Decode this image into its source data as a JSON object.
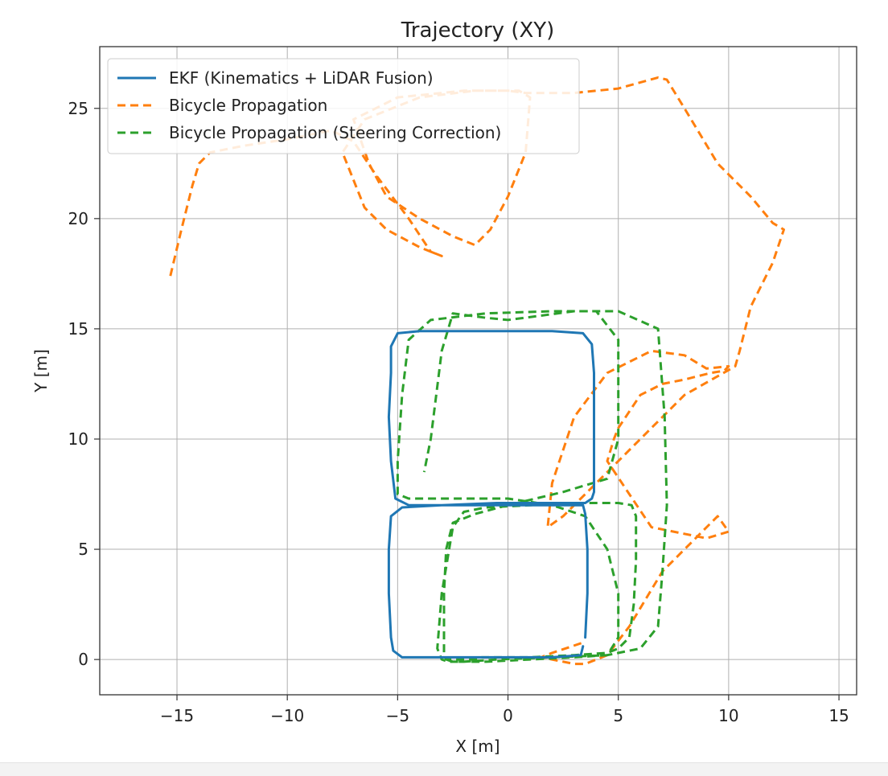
{
  "chart_data": {
    "type": "line",
    "title": "Trajectory (XY)",
    "xlabel": "X [m]",
    "ylabel": "Y [m]",
    "xlim": [
      -18.5,
      15.8
    ],
    "ylim": [
      -1.6,
      27.8
    ],
    "xticks": [
      -15,
      -10,
      -5,
      0,
      5,
      10,
      15
    ],
    "yticks": [
      0,
      5,
      10,
      15,
      20,
      25
    ],
    "xtick_labels": [
      "−15",
      "−10",
      "−5",
      "0",
      "5",
      "10",
      "15"
    ],
    "ytick_labels": [
      "0",
      "5",
      "10",
      "15",
      "20",
      "25"
    ],
    "grid": true,
    "legend_position": "top-left",
    "series": [
      {
        "name": "EKF (Kinematics + LiDAR Fusion)",
        "color": "#1f77b4",
        "style": "solid",
        "x": [
          3.5,
          3.6,
          3.6,
          3.5,
          3.4,
          2.5,
          0.0,
          -2.5,
          -4.5,
          -5.1,
          -5.3,
          -5.4,
          -5.3,
          -5.3,
          -5.0,
          -4.0,
          -2.0,
          0.0,
          2.0,
          3.4,
          3.8,
          3.9,
          3.9,
          3.9,
          3.9,
          3.8,
          3.5,
          2.0,
          -0.5,
          -3.0,
          -4.8,
          -5.3,
          -5.4,
          -5.4,
          -5.3,
          -5.2,
          -4.8,
          -4.0,
          -2.0,
          0.0,
          2.0,
          3.3,
          3.4
        ],
        "y": [
          1.0,
          3.0,
          5.0,
          6.6,
          7.0,
          7.0,
          7.0,
          7.0,
          7.0,
          7.3,
          9.0,
          11.0,
          13.0,
          14.2,
          14.8,
          14.9,
          14.9,
          14.9,
          14.9,
          14.8,
          14.3,
          13.0,
          11.0,
          9.0,
          7.6,
          7.3,
          7.1,
          7.1,
          7.1,
          7.0,
          6.9,
          6.5,
          5.0,
          3.0,
          1.0,
          0.4,
          0.1,
          0.1,
          0.1,
          0.1,
          0.1,
          0.2,
          0.6
        ]
      },
      {
        "name": "Bicycle Propagation",
        "color": "#ff7f0e",
        "style": "dashed",
        "x": [
          -15.3,
          -14.8,
          -14.3,
          -14.0,
          -13.5,
          -12.0,
          -10.0,
          -8.0,
          -7.0,
          -6.0,
          -4.5,
          -3.5,
          -3.0,
          -4.0,
          -5.5,
          -6.5,
          -7.5,
          -6.5,
          -4.0,
          -1.5,
          0.5,
          1.0,
          0.8,
          0.0,
          -0.8,
          -1.5,
          -2.5,
          -4.0,
          -5.5,
          -6.3,
          -7.0,
          -5.0,
          -2.0,
          0.0,
          0.8,
          3.0,
          5.0,
          6.8,
          7.2,
          8.0,
          9.5,
          11.0,
          12.0,
          12.5,
          12.0,
          11.0,
          10.5,
          10.3,
          8.0,
          6.0,
          4.0,
          2.5,
          1.8,
          2.0,
          3.0,
          4.5,
          6.5,
          8.0,
          9.0,
          10.0,
          9.8,
          9.2,
          8.0,
          7.0,
          6.0,
          5.0,
          4.8,
          4.5,
          5.5,
          6.5,
          9.0,
          10.0,
          9.5,
          7.0,
          6.4,
          5.5,
          4.5,
          3.5,
          3.0,
          2.0,
          1.5,
          2.0,
          3.5
        ],
        "y": [
          17.4,
          19.5,
          21.5,
          22.5,
          23.0,
          23.3,
          23.6,
          24.0,
          23.5,
          22.0,
          20.0,
          18.5,
          18.3,
          18.7,
          19.5,
          20.5,
          23.0,
          24.5,
          25.5,
          25.8,
          25.8,
          25.5,
          23.0,
          21.0,
          19.5,
          18.8,
          19.2,
          20.0,
          21.0,
          22.5,
          24.5,
          25.5,
          25.8,
          25.8,
          25.7,
          25.7,
          25.9,
          26.4,
          26.3,
          25.0,
          22.5,
          21.0,
          19.8,
          19.5,
          18.0,
          16.0,
          14.0,
          13.3,
          12.0,
          10.0,
          8.0,
          6.5,
          6.0,
          8.0,
          11.0,
          13.0,
          14.0,
          13.8,
          13.2,
          13.3,
          13.1,
          13.0,
          12.7,
          12.5,
          12.0,
          10.5,
          10.0,
          9.0,
          7.5,
          6.0,
          5.5,
          5.8,
          6.5,
          4.0,
          3.0,
          1.5,
          0.2,
          -0.2,
          -0.2,
          0.0,
          0.1,
          0.3,
          0.8
        ]
      },
      {
        "name": "Bicycle Propagation (Steering Correction)",
        "color": "#2ca02c",
        "style": "dashed",
        "x": [
          -2.8,
          -2.5,
          -2.0,
          -1.0,
          1.0,
          3.0,
          4.5,
          5.0,
          5.0,
          4.5,
          3.5,
          2.0,
          0.0,
          -2.5,
          -4.5,
          -5.0,
          -5.0,
          -4.8,
          -4.5,
          -3.5,
          -1.0,
          2.0,
          4.0,
          5.0,
          5.0,
          5.0,
          4.5,
          2.5,
          0.0,
          -1.5,
          -2.5,
          -2.8,
          -2.9,
          -2.9,
          -2.9,
          -2.9,
          -2.8,
          -2.0,
          -1.5,
          -1.3,
          -1.2,
          -0.8,
          1.0,
          3.0,
          4.5,
          5.0,
          5.5,
          5.7,
          5.8,
          5.8,
          5.6,
          5.0,
          3.5,
          1.0,
          -1.0,
          -2.0,
          -2.5,
          -3.0,
          -3.2,
          -3.0,
          -2.7,
          -2.0,
          -0.5,
          2.0,
          4.5,
          6.0,
          6.8,
          7.0,
          7.2,
          7.1,
          6.8,
          5.0,
          3.0,
          1.5,
          0.0,
          -1.0,
          -2.5,
          -3.0,
          -3.5,
          -3.8
        ],
        "y": [
          0.0,
          -0.1,
          -0.1,
          -0.1,
          0.0,
          0.1,
          0.2,
          1.0,
          3.0,
          5.0,
          6.5,
          7.0,
          7.3,
          7.3,
          7.3,
          7.5,
          9.0,
          12.0,
          14.5,
          15.4,
          15.7,
          15.8,
          15.8,
          14.5,
          12.0,
          10.0,
          8.2,
          7.6,
          7.0,
          6.6,
          6.2,
          5.0,
          3.0,
          1.5,
          0.5,
          0.2,
          0.0,
          0.0,
          0.0,
          0.0,
          0.1,
          0.1,
          0.1,
          0.2,
          0.3,
          0.5,
          1.0,
          2.5,
          4.5,
          6.5,
          7.0,
          7.1,
          7.1,
          7.0,
          6.9,
          6.7,
          6.0,
          3.0,
          0.5,
          0.0,
          -0.1,
          -0.1,
          0.0,
          0.1,
          0.2,
          0.5,
          1.5,
          4.0,
          7.0,
          11.0,
          15.0,
          15.8,
          15.8,
          15.6,
          15.4,
          15.5,
          15.7,
          14.0,
          10.0,
          8.5
        ]
      }
    ]
  }
}
